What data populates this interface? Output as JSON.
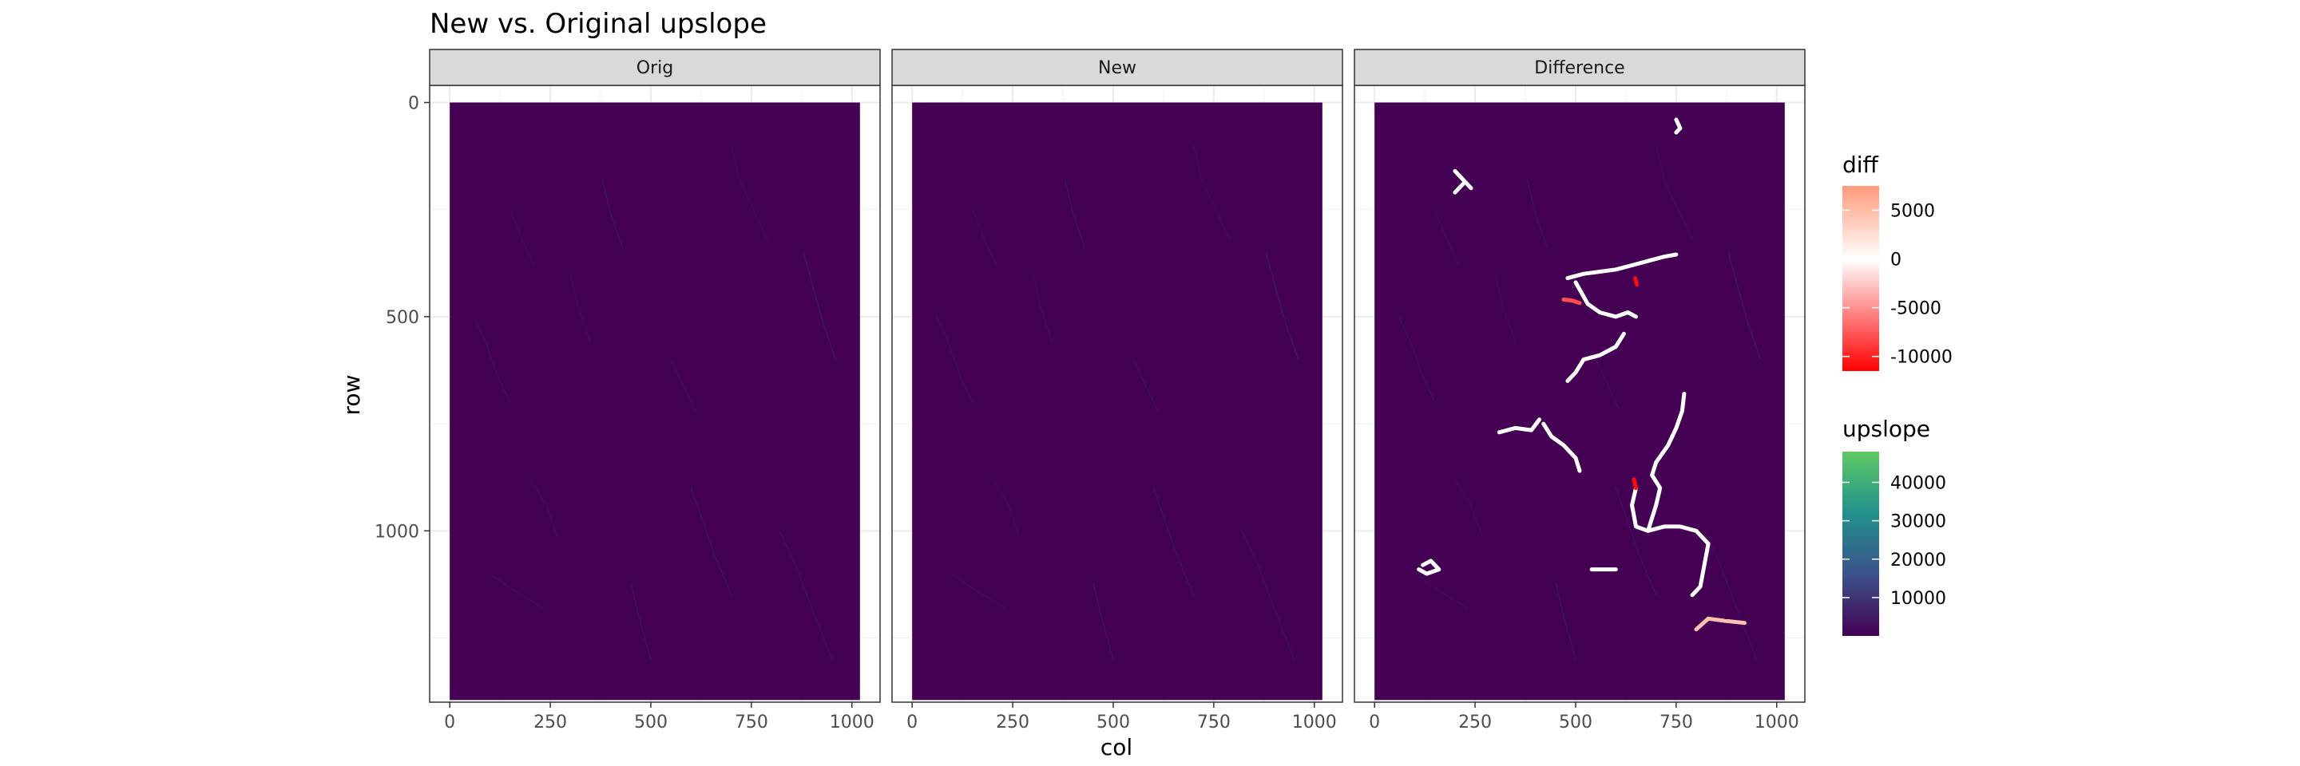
{
  "chart_data": {
    "type": "heatmap",
    "title": "New vs. Original upslope",
    "xlabel": "col",
    "ylabel": "row",
    "xlim": [
      -50,
      1070
    ],
    "ylim": [
      1400,
      -40
    ],
    "y_reversed": true,
    "x_ticks": [
      0,
      250,
      500,
      750,
      1000
    ],
    "x_tick_labels": [
      "0",
      "250",
      "500",
      "750",
      "1000"
    ],
    "y_ticks": [
      0,
      500,
      1000
    ],
    "y_tick_labels": [
      "0",
      "500",
      "1000"
    ],
    "raster_extent": {
      "col": [
        0,
        1020
      ],
      "row": [
        0,
        1395
      ]
    },
    "background_value": 0,
    "grid": true,
    "panels": [
      {
        "name": "Orig",
        "fill": "upslope"
      },
      {
        "name": "New",
        "fill": "upslope"
      },
      {
        "name": "Difference",
        "fill": "diff"
      }
    ],
    "legends": [
      {
        "title": "diff",
        "type": "colorbar",
        "range": [
          -11500,
          7500
        ],
        "breaks": [
          5000,
          0,
          -5000,
          -10000
        ],
        "labels": [
          "5000",
          "0",
          "-5000",
          "-10000"
        ],
        "colors": {
          "low": "#ff0000",
          "mid": "#ffffff",
          "high": "#ff9a7a"
        }
      },
      {
        "title": "upslope",
        "type": "colorbar",
        "range": [
          0,
          48000
        ],
        "breaks": [
          40000,
          30000,
          20000,
          10000
        ],
        "labels": [
          "40000",
          "30000",
          "20000",
          "10000"
        ],
        "colors": [
          "#440154",
          "#3b528b",
          "#21918c",
          "#5ec962"
        ]
      }
    ],
    "difference_features": [
      {
        "value": 0,
        "points": [
          [
            480,
            410
          ],
          [
            520,
            400
          ],
          [
            560,
            395
          ],
          [
            600,
            390
          ],
          [
            640,
            380
          ],
          [
            680,
            370
          ],
          [
            720,
            360
          ],
          [
            750,
            355
          ]
        ]
      },
      {
        "value": 0,
        "points": [
          [
            500,
            420
          ],
          [
            530,
            470
          ],
          [
            560,
            490
          ],
          [
            600,
            500
          ],
          [
            630,
            490
          ],
          [
            650,
            500
          ]
        ]
      },
      {
        "value": 0,
        "points": [
          [
            620,
            540
          ],
          [
            600,
            570
          ],
          [
            560,
            590
          ],
          [
            520,
            600
          ],
          [
            500,
            630
          ],
          [
            480,
            650
          ]
        ]
      },
      {
        "value": 0,
        "points": [
          [
            310,
            770
          ],
          [
            350,
            760
          ],
          [
            390,
            765
          ],
          [
            410,
            740
          ]
        ]
      },
      {
        "value": 0,
        "points": [
          [
            420,
            750
          ],
          [
            440,
            780
          ],
          [
            470,
            800
          ],
          [
            500,
            830
          ],
          [
            510,
            860
          ]
        ]
      },
      {
        "value": 0,
        "points": [
          [
            770,
            680
          ],
          [
            765,
            720
          ],
          [
            750,
            760
          ],
          [
            730,
            800
          ],
          [
            700,
            840
          ],
          [
            690,
            870
          ]
        ]
      },
      {
        "value": 0,
        "points": [
          [
            650,
            900
          ],
          [
            640,
            940
          ],
          [
            650,
            990
          ],
          [
            680,
            1000
          ],
          [
            720,
            990
          ],
          [
            760,
            990
          ],
          [
            800,
            1000
          ],
          [
            830,
            1030
          ],
          [
            820,
            1080
          ],
          [
            810,
            1130
          ],
          [
            790,
            1150
          ]
        ]
      },
      {
        "value": 0,
        "points": [
          [
            690,
            870
          ],
          [
            710,
            900
          ],
          [
            700,
            940
          ],
          [
            680,
            1000
          ]
        ]
      },
      {
        "value": 0,
        "points": [
          [
            120,
            1080
          ],
          [
            140,
            1070
          ],
          [
            160,
            1090
          ],
          [
            130,
            1100
          ],
          [
            110,
            1090
          ]
        ]
      },
      {
        "value": 0,
        "points": [
          [
            540,
            1090
          ],
          [
            600,
            1090
          ]
        ]
      },
      {
        "value": 0,
        "points": [
          [
            200,
            160
          ],
          [
            220,
            180
          ],
          [
            240,
            200
          ]
        ]
      },
      {
        "value": 0,
        "points": [
          [
            220,
            190
          ],
          [
            200,
            210
          ]
        ]
      },
      {
        "value": 0,
        "points": [
          [
            750,
            40
          ],
          [
            760,
            60
          ],
          [
            750,
            70
          ]
        ]
      },
      {
        "value": 4500,
        "points": [
          [
            800,
            1230
          ],
          [
            830,
            1205
          ],
          [
            870,
            1210
          ],
          [
            920,
            1215
          ]
        ]
      },
      {
        "value": -8000,
        "points": [
          [
            470,
            460
          ],
          [
            490,
            462
          ],
          [
            510,
            468
          ]
        ]
      },
      {
        "value": -11000,
        "points": [
          [
            645,
            880
          ],
          [
            650,
            900
          ]
        ]
      },
      {
        "value": -11000,
        "points": [
          [
            648,
            410
          ],
          [
            652,
            425
          ]
        ]
      }
    ],
    "upslope_streams": [
      {
        "value": 4000,
        "points": [
          [
            60,
            500
          ],
          [
            90,
            560
          ],
          [
            120,
            640
          ],
          [
            150,
            700
          ]
        ]
      },
      {
        "value": 5000,
        "points": [
          [
            380,
            180
          ],
          [
            400,
            260
          ],
          [
            430,
            340
          ]
        ]
      },
      {
        "value": 3000,
        "points": [
          [
            700,
            100
          ],
          [
            720,
            180
          ],
          [
            760,
            260
          ],
          [
            790,
            320
          ]
        ]
      },
      {
        "value": 6000,
        "points": [
          [
            880,
            350
          ],
          [
            900,
            420
          ],
          [
            930,
            520
          ],
          [
            960,
            600
          ]
        ]
      },
      {
        "value": 3000,
        "points": [
          [
            200,
            880
          ],
          [
            240,
            940
          ],
          [
            270,
            1020
          ]
        ]
      },
      {
        "value": 5000,
        "points": [
          [
            600,
            900
          ],
          [
            630,
            980
          ],
          [
            660,
            1060
          ],
          [
            700,
            1150
          ]
        ]
      },
      {
        "value": 4000,
        "points": [
          [
            820,
            1000
          ],
          [
            860,
            1080
          ],
          [
            900,
            1180
          ],
          [
            950,
            1300
          ]
        ]
      },
      {
        "value": 3000,
        "points": [
          [
            100,
            1100
          ],
          [
            160,
            1140
          ],
          [
            230,
            1180
          ]
        ]
      },
      {
        "value": 5000,
        "points": [
          [
            450,
            1120
          ],
          [
            470,
            1200
          ],
          [
            500,
            1300
          ]
        ]
      },
      {
        "value": 3000,
        "points": [
          [
            300,
            400
          ],
          [
            320,
            480
          ],
          [
            350,
            560
          ]
        ]
      },
      {
        "value": 4000,
        "points": [
          [
            550,
            600
          ],
          [
            580,
            660
          ],
          [
            610,
            720
          ]
        ]
      },
      {
        "value": 3000,
        "points": [
          [
            150,
            250
          ],
          [
            180,
            320
          ],
          [
            210,
            380
          ]
        ]
      }
    ]
  }
}
